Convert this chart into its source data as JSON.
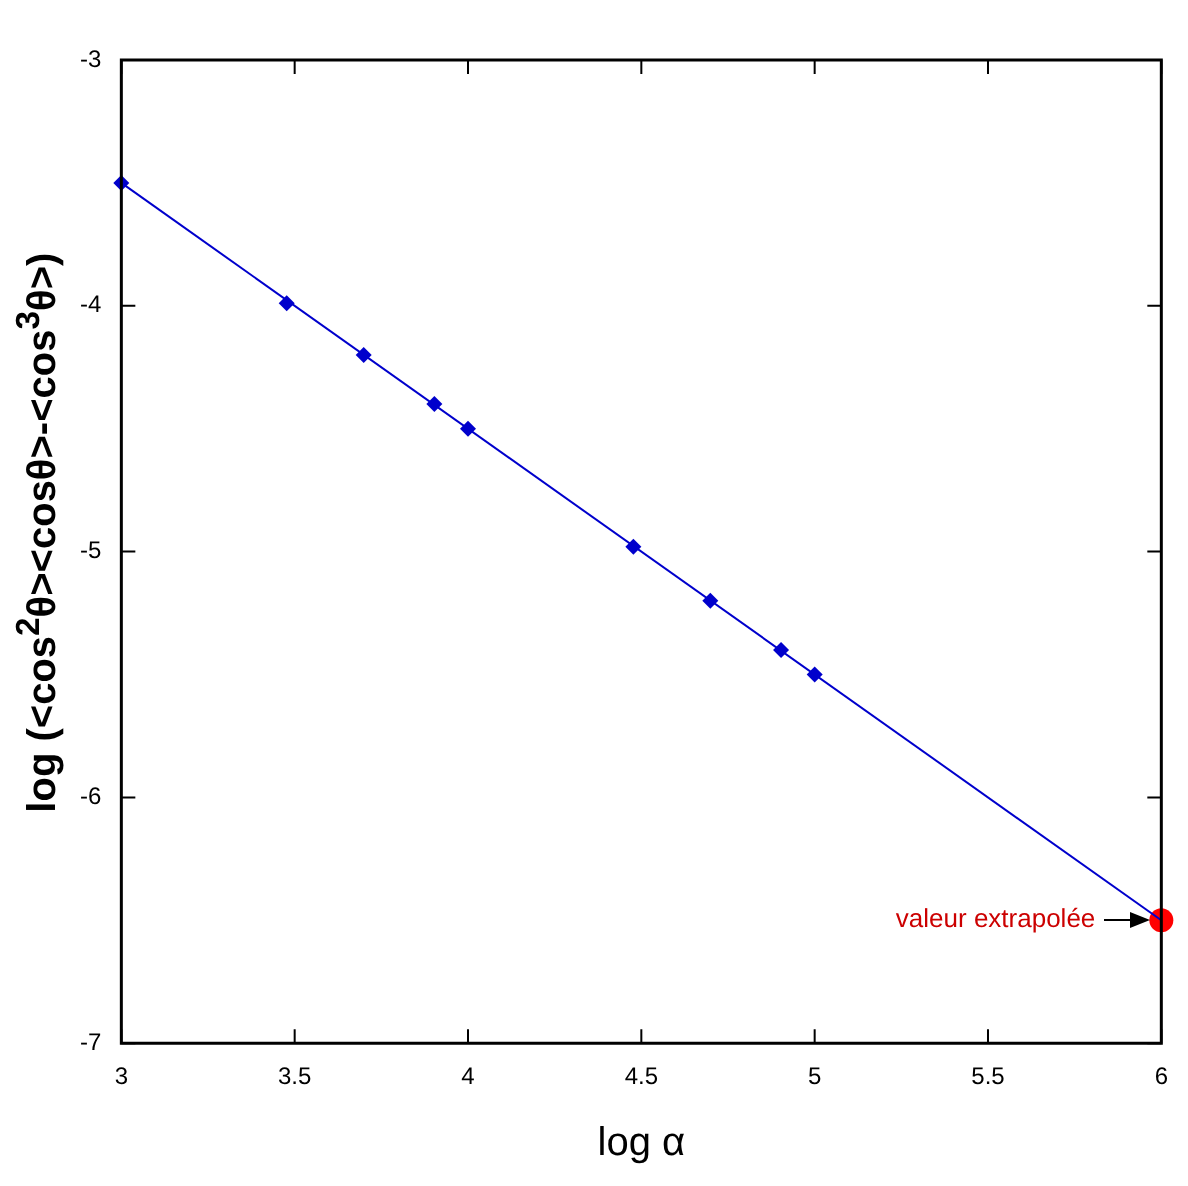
{
  "chart_data": {
    "type": "scatter",
    "xlabel": "log α",
    "ylabel": "log (<cos$^{2}$θ><cosθ>-<cos$^{3}$θ>)",
    "xlim": [
      3,
      6
    ],
    "ylim": [
      -7,
      -3
    ],
    "xticks": [
      3,
      3.5,
      4,
      4.5,
      5,
      5.5,
      6
    ],
    "yticks": [
      -7,
      -6,
      -5,
      -4,
      -3
    ],
    "grid": false,
    "legend": false,
    "series": [
      {
        "type": "line",
        "color": "#0000cc",
        "marker": "none",
        "x": [
          3,
          6
        ],
        "values": [
          -3.5,
          -6.5
        ]
      },
      {
        "color": "#0000cc",
        "marker": "diamond",
        "x": [
          3,
          3.477,
          3.699,
          3.903,
          4,
          4.477,
          4.699,
          4.903,
          5
        ],
        "values": [
          -3.5,
          -3.99,
          -4.2,
          -4.4,
          -4.5,
          -4.98,
          -5.2,
          -5.4,
          -5.5
        ]
      },
      {
        "color": "#ff0000",
        "marker": "circle",
        "x": [
          6
        ],
        "values": [
          -6.5
        ]
      }
    ],
    "annotations": [
      {
        "text": "valeur extrapolée",
        "x": 6,
        "y": -6.5
      }
    ]
  }
}
